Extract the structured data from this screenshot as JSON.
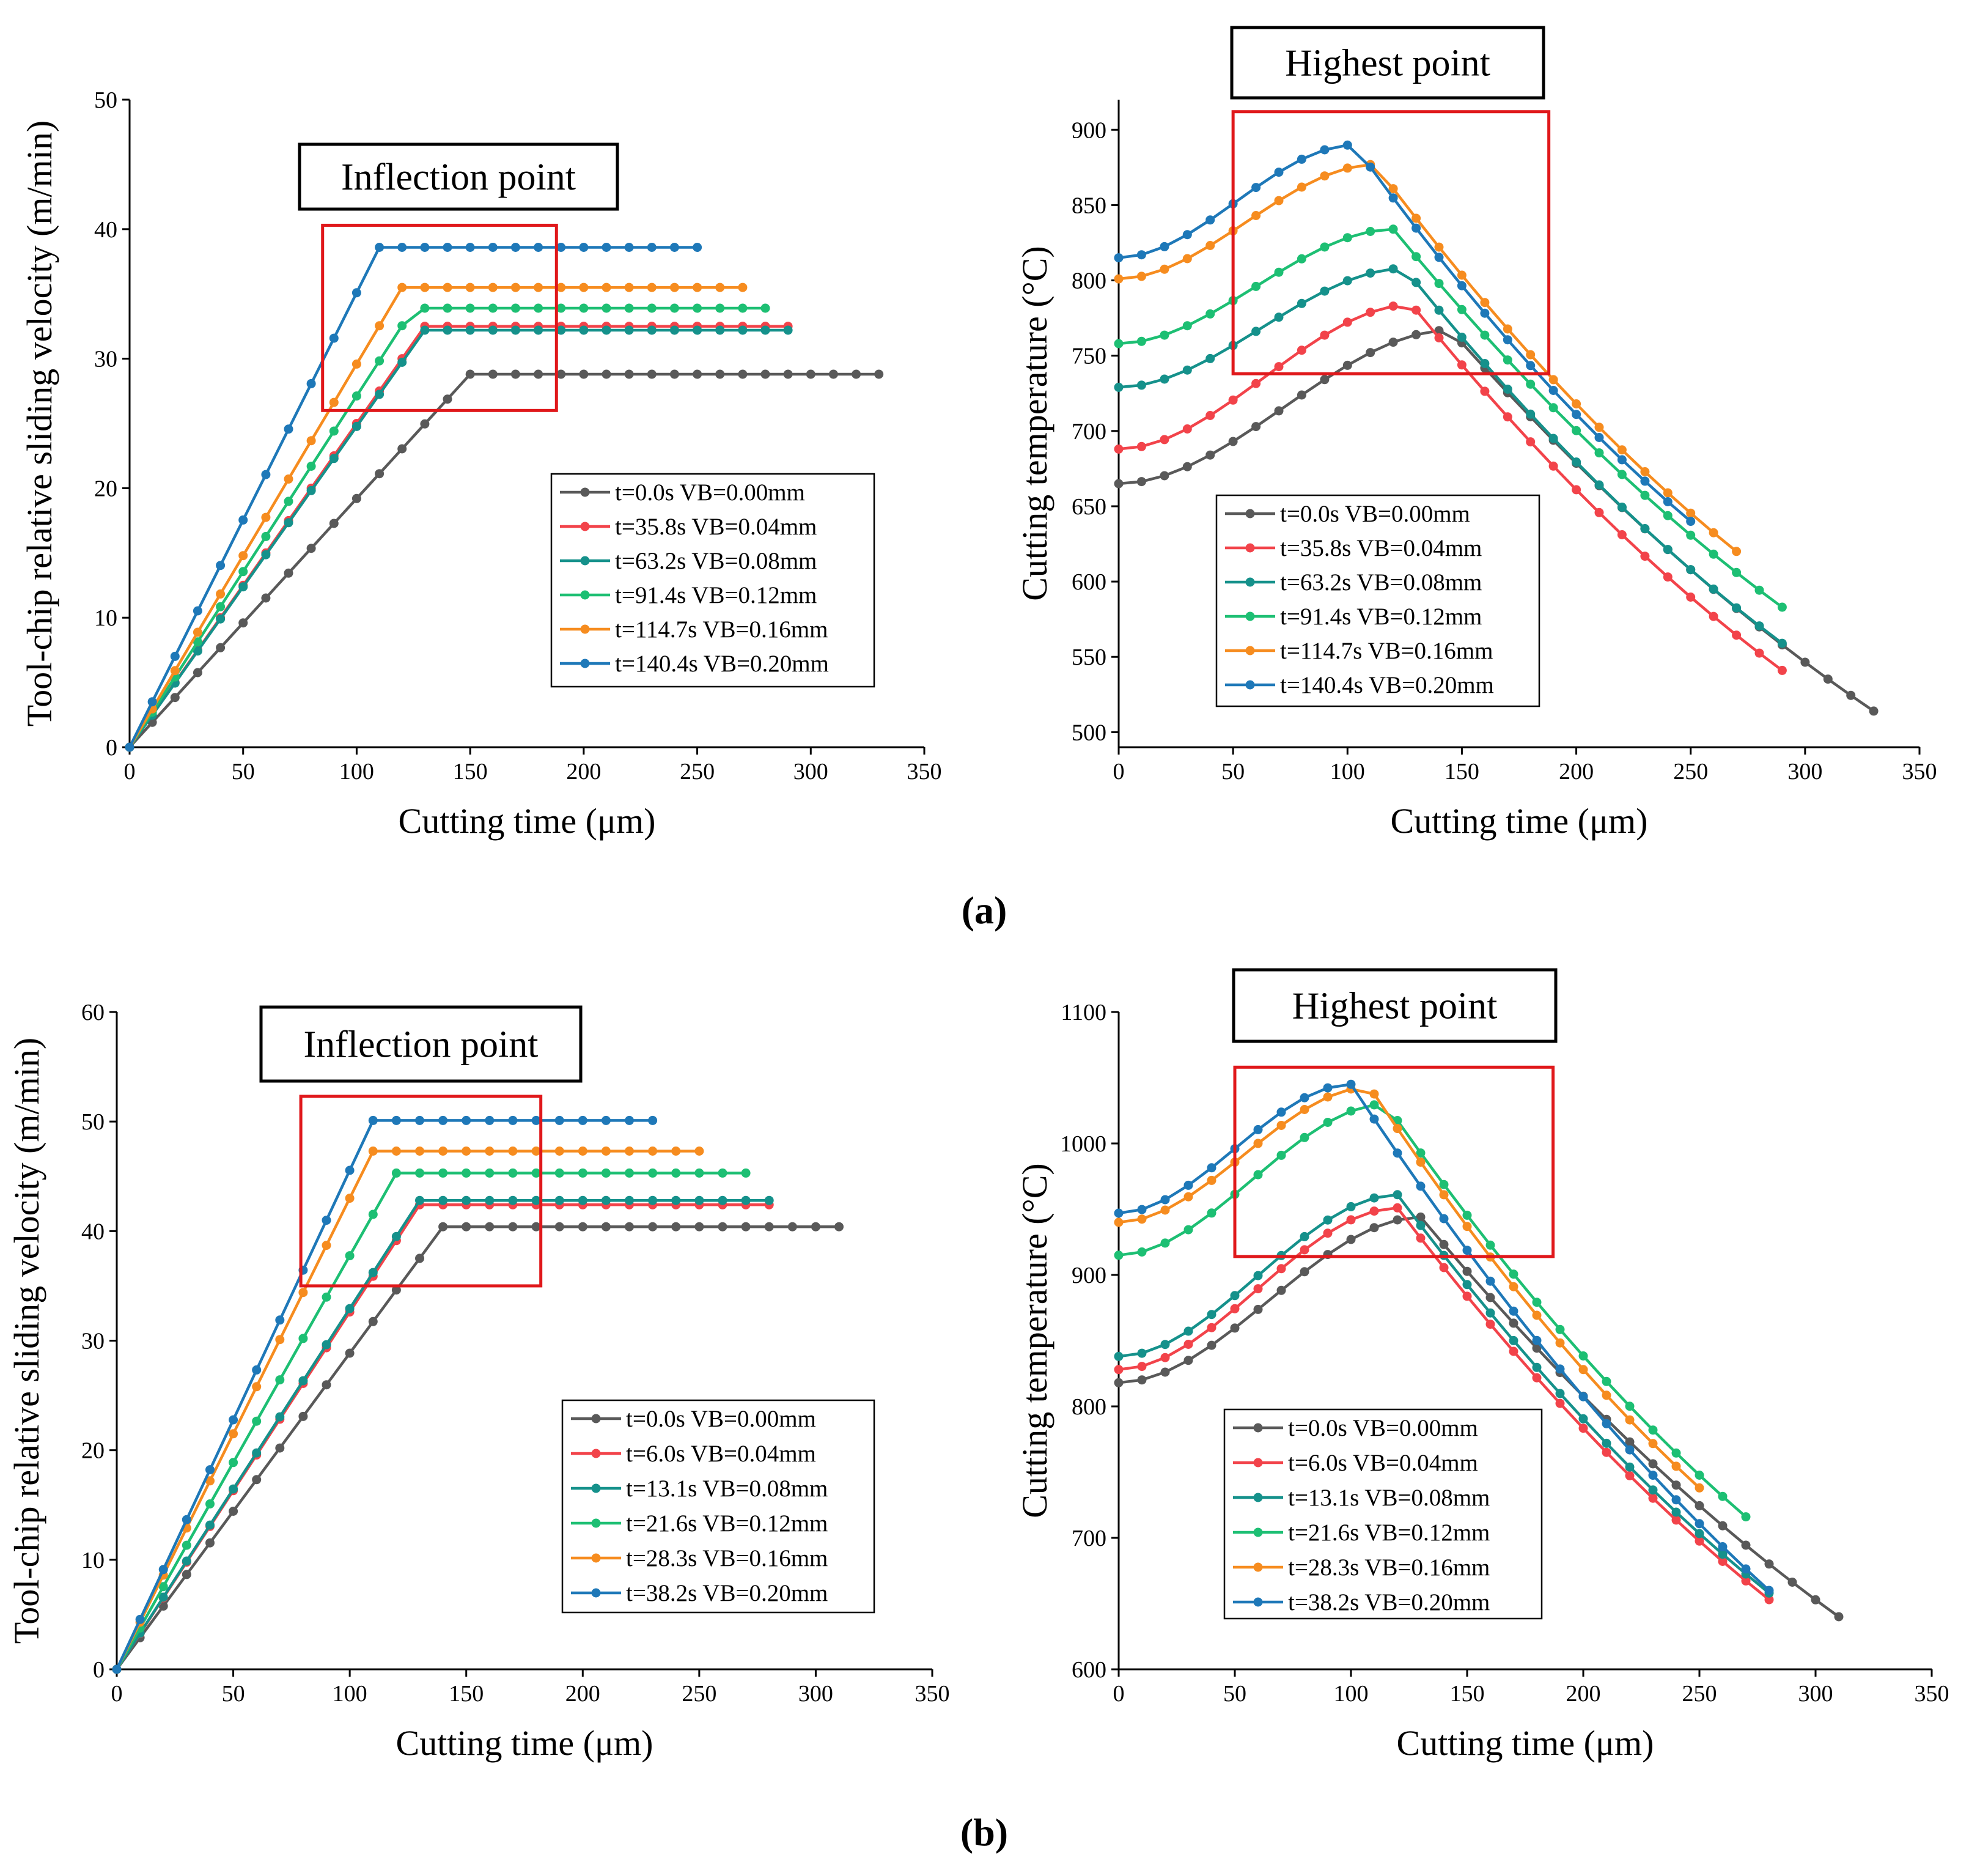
{
  "captions": [
    "(a)",
    "(b)"
  ],
  "colors": {
    "series": [
      "#595959",
      "#f2434a",
      "#15918b",
      "#1dbf73",
      "#f68c1f",
      "#1e78b8"
    ],
    "highlight_box": "#e0181b",
    "axis": "#000000"
  },
  "chart_data": [
    {
      "type": "line",
      "panel": "a",
      "ylabel": "Tool-chip relative sliding velocity (m/min)",
      "xlabel": "Cutting time (μm)",
      "xlim": [
        0,
        350
      ],
      "ylim": [
        0,
        50
      ],
      "xticks": [
        0,
        50,
        100,
        150,
        200,
        250,
        300,
        350
      ],
      "yticks": [
        0,
        10,
        20,
        30,
        40,
        50
      ],
      "annotation": "Inflection point",
      "highlight_region": {
        "x": [
          85,
          188
        ],
        "y": [
          26,
          40.3
        ]
      },
      "legend_position": "lower-right",
      "series": [
        {
          "name": "t=0.0s VB=0.00mm",
          "shape": "ramp",
          "x_end": 330,
          "knee_x": 150,
          "plateau": 28.8
        },
        {
          "name": "t=35.8s VB=0.04mm",
          "shape": "ramp",
          "x_end": 290,
          "knee_x": 130,
          "plateau": 32.5
        },
        {
          "name": "t=63.2s VB=0.08mm",
          "shape": "ramp",
          "x_end": 290,
          "knee_x": 130,
          "plateau": 32.2
        },
        {
          "name": "t=91.4s VB=0.12mm",
          "shape": "ramp",
          "x_end": 280,
          "knee_x": 125,
          "plateau": 33.9
        },
        {
          "name": "t=114.7s VB=0.16mm",
          "shape": "ramp",
          "x_end": 270,
          "knee_x": 120,
          "plateau": 35.5
        },
        {
          "name": "t=140.4s VB=0.20mm",
          "shape": "ramp",
          "x_end": 250,
          "knee_x": 110,
          "plateau": 38.6
        }
      ]
    },
    {
      "type": "line",
      "panel": "a",
      "ylabel": "Cutting temperature (°C)",
      "xlabel": "Cutting time (μm)",
      "xlim": [
        0,
        350
      ],
      "ylim": [
        490,
        920
      ],
      "xticks": [
        0,
        50,
        100,
        150,
        200,
        250,
        300,
        350
      ],
      "yticks": [
        500,
        550,
        600,
        650,
        700,
        750,
        800,
        850,
        900
      ],
      "annotation": "Highest point",
      "highlight_region": {
        "x": [
          50,
          188
        ],
        "y": [
          738,
          912
        ]
      },
      "legend_position": "lower-left",
      "series": [
        {
          "name": "t=0.0s VB=0.00mm",
          "shape": "peak",
          "x_end": 330,
          "start": 665,
          "peak_x": 145,
          "peak": 767,
          "end": 514
        },
        {
          "name": "t=35.8s VB=0.04mm",
          "shape": "peak",
          "x_end": 290,
          "start": 688,
          "peak_x": 128,
          "peak": 784,
          "end": 541
        },
        {
          "name": "t=63.2s VB=0.08mm",
          "shape": "peak",
          "x_end": 290,
          "start": 729,
          "peak_x": 125,
          "peak": 808,
          "end": 559
        },
        {
          "name": "t=91.4s VB=0.12mm",
          "shape": "peak",
          "x_end": 290,
          "start": 758,
          "peak_x": 120,
          "peak": 834,
          "end": 583
        },
        {
          "name": "t=114.7s VB=0.16mm",
          "shape": "peak",
          "x_end": 270,
          "start": 801,
          "peak_x": 112,
          "peak": 877,
          "end": 620
        },
        {
          "name": "t=140.4s VB=0.20mm",
          "shape": "peak",
          "x_end": 250,
          "start": 815,
          "peak_x": 103,
          "peak": 890,
          "end": 640
        }
      ]
    },
    {
      "type": "line",
      "panel": "b",
      "ylabel": "Tool-chip relative sliding velocity (m/min)",
      "xlabel": "Cutting time (μm)",
      "xlim": [
        0,
        350
      ],
      "ylim": [
        0,
        60
      ],
      "xticks": [
        0,
        50,
        100,
        150,
        200,
        250,
        300,
        350
      ],
      "yticks": [
        0,
        10,
        20,
        30,
        40,
        50,
        60
      ],
      "annotation": "Inflection point",
      "highlight_region": {
        "x": [
          79,
          182
        ],
        "y": [
          35,
          52.3
        ]
      },
      "legend_position": "lower-right",
      "series": [
        {
          "name": "t=0.0s VB=0.00mm",
          "shape": "ramp",
          "x_end": 310,
          "knee_x": 140,
          "plateau": 40.4
        },
        {
          "name": "t=6.0s VB=0.04mm",
          "shape": "ramp",
          "x_end": 280,
          "knee_x": 130,
          "plateau": 42.4
        },
        {
          "name": "t=13.1s VB=0.08mm",
          "shape": "ramp",
          "x_end": 280,
          "knee_x": 130,
          "plateau": 42.8
        },
        {
          "name": "t=21.6s VB=0.12mm",
          "shape": "ramp",
          "x_end": 270,
          "knee_x": 120,
          "plateau": 45.3
        },
        {
          "name": "t=28.3s VB=0.16mm",
          "shape": "ramp",
          "x_end": 250,
          "knee_x": 110,
          "plateau": 47.3
        },
        {
          "name": "t=38.2s VB=0.20mm",
          "shape": "ramp",
          "x_end": 230,
          "knee_x": 110,
          "plateau": 50.1
        }
      ]
    },
    {
      "type": "line",
      "panel": "b",
      "ylabel": "Cutting temperature (°C)",
      "xlabel": "Cutting time (μm)",
      "xlim": [
        0,
        350
      ],
      "ylim": [
        600,
        1100
      ],
      "xticks": [
        0,
        50,
        100,
        150,
        200,
        250,
        300,
        350
      ],
      "yticks": [
        600,
        700,
        800,
        900,
        1000,
        1100
      ],
      "annotation": "Highest point",
      "highlight_region": {
        "x": [
          50,
          187
        ],
        "y": [
          914,
          1058
        ]
      },
      "legend_position": "lower-left",
      "series": [
        {
          "name": "t=0.0s VB=0.00mm",
          "shape": "peak",
          "x_end": 310,
          "start": 818,
          "peak_x": 130,
          "peak": 944,
          "end": 640
        },
        {
          "name": "t=6.0s VB=0.04mm",
          "shape": "peak",
          "x_end": 280,
          "start": 828,
          "peak_x": 120,
          "peak": 951,
          "end": 653
        },
        {
          "name": "t=13.1s VB=0.08mm",
          "shape": "peak",
          "x_end": 280,
          "start": 838,
          "peak_x": 120,
          "peak": 961,
          "end": 658
        },
        {
          "name": "t=21.6s VB=0.12mm",
          "shape": "peak",
          "x_end": 270,
          "start": 915,
          "peak_x": 115,
          "peak": 1030,
          "end": 716
        },
        {
          "name": "t=28.3s VB=0.16mm",
          "shape": "peak",
          "x_end": 250,
          "start": 940,
          "peak_x": 108,
          "peak": 1043,
          "end": 738
        },
        {
          "name": "t=38.2s VB=0.20mm",
          "shape": "peak",
          "x_end": 280,
          "start": 947,
          "peak_x": 100,
          "peak": 1045,
          "end": 660
        }
      ]
    }
  ]
}
